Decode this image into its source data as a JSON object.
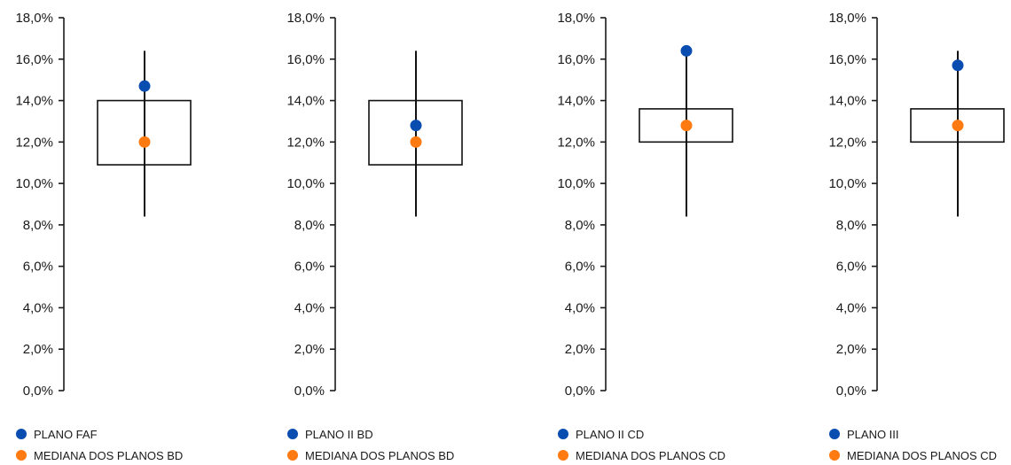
{
  "chart_data": [
    {
      "type": "boxplot",
      "ylim": [
        0,
        18
      ],
      "yticks": [
        "0,0%",
        "2,0%",
        "4,0%",
        "6,0%",
        "8,0%",
        "10,0%",
        "12,0%",
        "14,0%",
        "16,0%",
        "18,0%"
      ],
      "box": {
        "whisker_low": 8.4,
        "q1": 10.9,
        "q3": 14.0,
        "whisker_high": 16.4
      },
      "points": [
        {
          "name": "PLANO FAF",
          "value": 14.7,
          "color": "#0a4db0"
        },
        {
          "name": "MEDIANA DOS PLANOS BD",
          "value": 12.0,
          "color": "#ff7a10"
        }
      ]
    },
    {
      "type": "boxplot",
      "ylim": [
        0,
        18
      ],
      "yticks": [
        "0,0%",
        "2,0%",
        "4,0%",
        "6,0%",
        "8,0%",
        "10,0%",
        "12,0%",
        "14,0%",
        "16,0%",
        "18,0%"
      ],
      "box": {
        "whisker_low": 8.4,
        "q1": 10.9,
        "q3": 14.0,
        "whisker_high": 16.4
      },
      "points": [
        {
          "name": "PLANO II BD",
          "value": 12.8,
          "color": "#0a4db0"
        },
        {
          "name": "MEDIANA DOS PLANOS BD",
          "value": 12.0,
          "color": "#ff7a10"
        }
      ]
    },
    {
      "type": "boxplot",
      "ylim": [
        0,
        18
      ],
      "yticks": [
        "0,0%",
        "2,0%",
        "4,0%",
        "6,0%",
        "8,0%",
        "10,0%",
        "12,0%",
        "14,0%",
        "16,0%",
        "18,0%"
      ],
      "box": {
        "whisker_low": 8.4,
        "q1": 12.0,
        "q3": 13.6,
        "whisker_high": 16.4
      },
      "points": [
        {
          "name": "PLANO II CD",
          "value": 16.4,
          "color": "#0a4db0"
        },
        {
          "name": "MEDIANA DOS PLANOS CD",
          "value": 12.8,
          "color": "#ff7a10"
        }
      ]
    },
    {
      "type": "boxplot",
      "ylim": [
        0,
        18
      ],
      "yticks": [
        "0,0%",
        "2,0%",
        "4,0%",
        "6,0%",
        "8,0%",
        "10,0%",
        "12,0%",
        "14,0%",
        "16,0%",
        "18,0%"
      ],
      "box": {
        "whisker_low": 8.4,
        "q1": 12.0,
        "q3": 13.6,
        "whisker_high": 16.4
      },
      "points": [
        {
          "name": "PLANO III",
          "value": 15.7,
          "color": "#0a4db0"
        },
        {
          "name": "MEDIANA DOS PLANOS CD",
          "value": 12.8,
          "color": "#ff7a10"
        }
      ]
    }
  ]
}
